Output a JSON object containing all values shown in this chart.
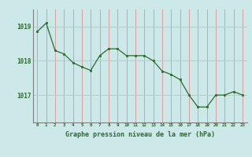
{
  "x": [
    0,
    1,
    2,
    3,
    4,
    5,
    6,
    7,
    8,
    9,
    10,
    11,
    12,
    13,
    14,
    15,
    16,
    17,
    18,
    19,
    20,
    21,
    22,
    23
  ],
  "y": [
    1018.85,
    1019.1,
    1018.3,
    1018.2,
    1017.95,
    1017.82,
    1017.72,
    1018.15,
    1018.35,
    1018.35,
    1018.15,
    1018.15,
    1018.15,
    1018.0,
    1017.7,
    1017.6,
    1017.45,
    1017.0,
    1016.65,
    1016.65,
    1017.0,
    1017.0,
    1017.1,
    1017.0
  ],
  "line_color": "#2d6a2d",
  "marker_color": "#2d6a2d",
  "bg_color": "#cce8e8",
  "vgrid_color": "#e08080",
  "hgrid_color": "#b0d0d0",
  "axis_label_color": "#2d6a2d",
  "tick_label_color": "#2d6a2d",
  "xlabel": "Graphe pression niveau de la mer (hPa)",
  "yticks": [
    1017,
    1018,
    1019
  ],
  "ylim": [
    1016.2,
    1019.5
  ],
  "xlim": [
    -0.5,
    23.5
  ]
}
